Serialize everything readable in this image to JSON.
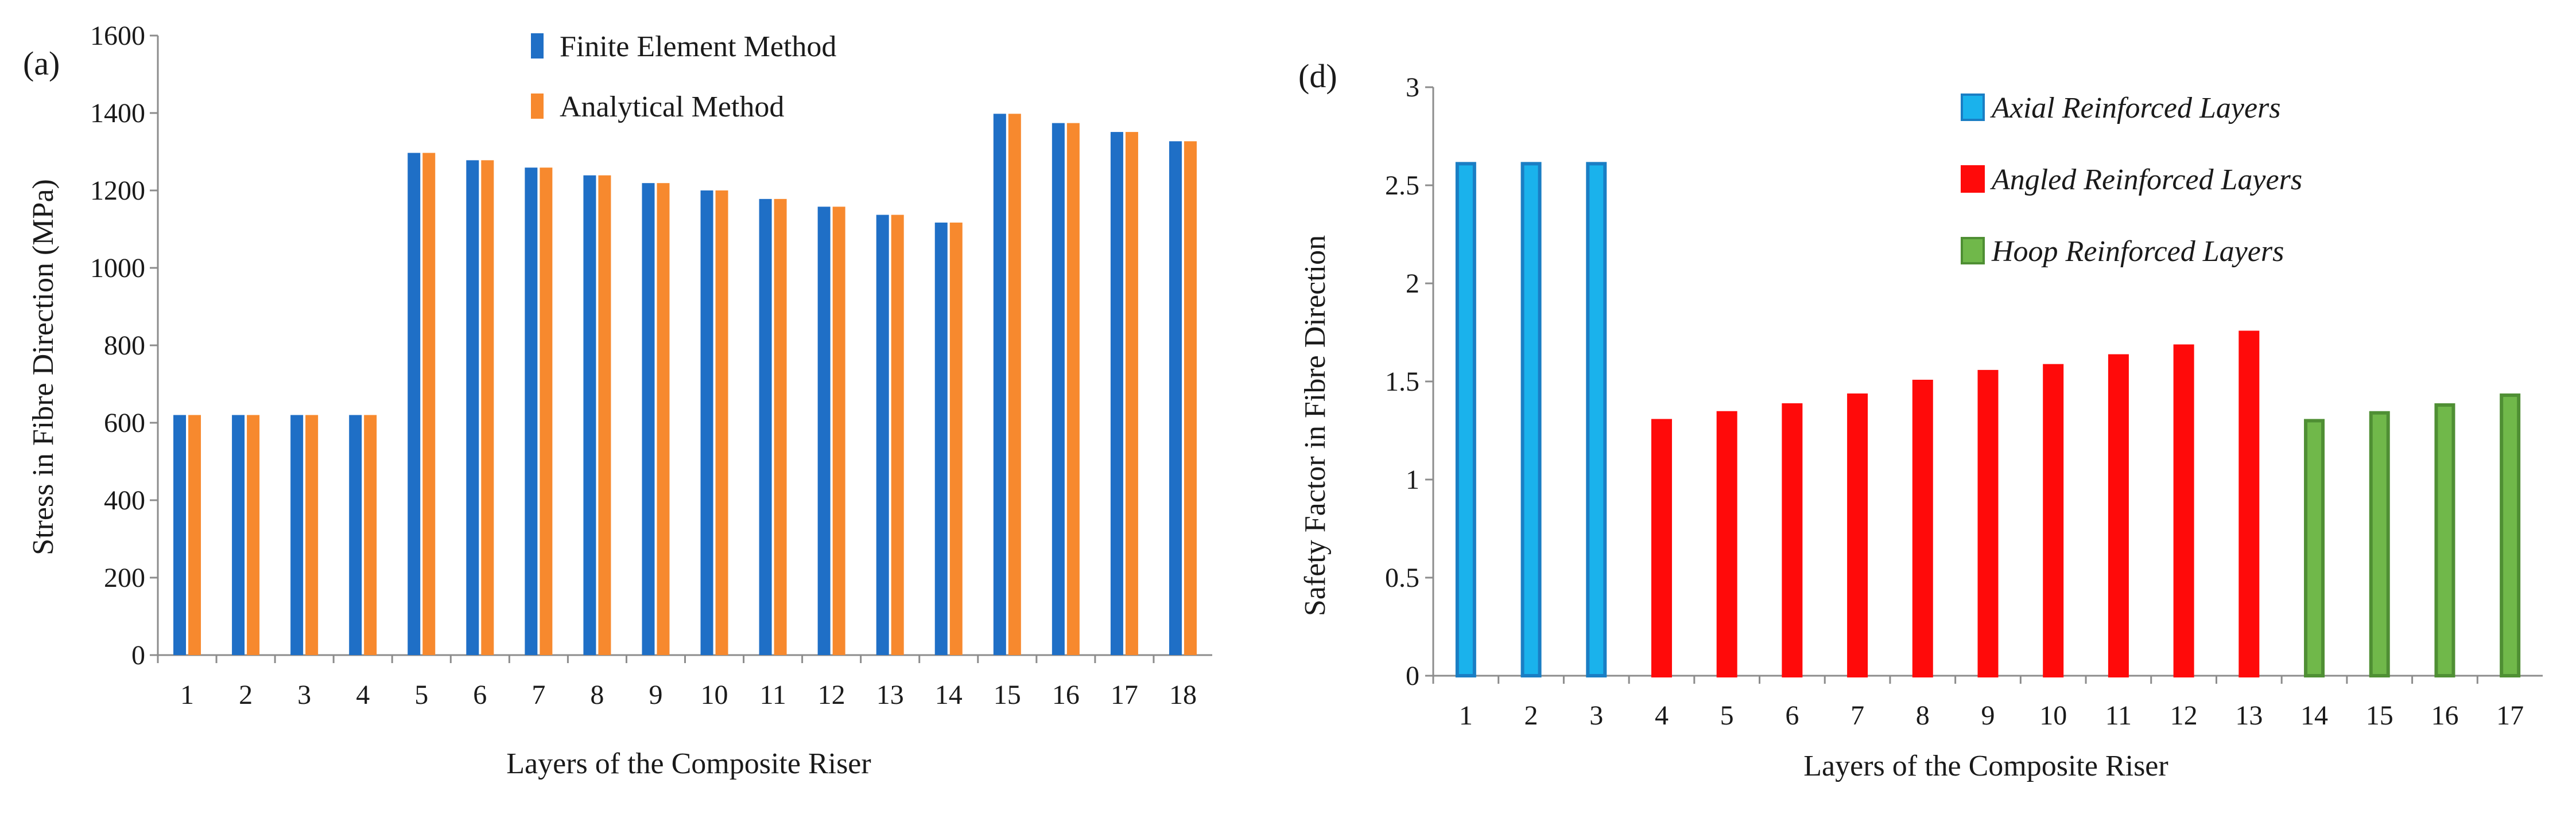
{
  "chart_data": [
    {
      "type": "bar",
      "panel_label": "(a)",
      "title": "",
      "xlabel": "Layers of the Composite Riser",
      "ylabel": "Stress in Fibre Direction (MPa)",
      "ylim": [
        0,
        1600
      ],
      "yticks": [
        0,
        200,
        400,
        600,
        800,
        1000,
        1200,
        1400,
        1600
      ],
      "categories": [
        "1",
        "2",
        "3",
        "4",
        "5",
        "6",
        "7",
        "8",
        "9",
        "10",
        "11",
        "12",
        "13",
        "14",
        "15",
        "16",
        "17",
        "18"
      ],
      "series": [
        {
          "name": "Finite Element Method",
          "color": "#1f6fc6",
          "values": [
            620,
            620,
            620,
            620,
            1297,
            1278,
            1259,
            1239,
            1219,
            1200,
            1178,
            1158,
            1137,
            1117,
            1398,
            1374,
            1351,
            1327
          ]
        },
        {
          "name": "Analytical Method",
          "color": "#f7892e",
          "values": [
            620,
            620,
            620,
            620,
            1297,
            1278,
            1259,
            1239,
            1219,
            1200,
            1178,
            1158,
            1137,
            1117,
            1398,
            1374,
            1351,
            1327
          ]
        }
      ],
      "legend_position": "top-center"
    },
    {
      "type": "bar",
      "panel_label": "(d)",
      "title": "",
      "xlabel": "Layers of the Composite Riser",
      "ylabel": "Safety Factor in Fibre Direction",
      "ylim": [
        0,
        3
      ],
      "yticks": [
        "0",
        "0.5",
        "1",
        "1.5",
        "2",
        "2.5",
        "3"
      ],
      "categories": [
        "1",
        "2",
        "3",
        "4",
        "5",
        "6",
        "7",
        "8",
        "9",
        "10",
        "11",
        "12",
        "13",
        "14",
        "15",
        "16",
        "17"
      ],
      "series": [
        {
          "name": "Axial Reinforced Layers",
          "color": "#1ab2ec",
          "edge": "#1a7ec4",
          "values": [
            2.61,
            2.61,
            2.61,
            null,
            null,
            null,
            null,
            null,
            null,
            null,
            null,
            null,
            null,
            null,
            null,
            null,
            null
          ]
        },
        {
          "name": "Angled Reinforced Layers",
          "color": "#ff0a0a",
          "edge": "#ff0a0a",
          "values": [
            null,
            null,
            null,
            1.3,
            1.34,
            1.38,
            1.43,
            1.5,
            1.55,
            1.58,
            1.63,
            1.68,
            1.75,
            null,
            null,
            null,
            null
          ]
        },
        {
          "name": "Hoop Reinforced Layers",
          "color": "#70b84a",
          "edge": "#4f8f34",
          "values": [
            null,
            null,
            null,
            null,
            null,
            null,
            null,
            null,
            null,
            null,
            null,
            null,
            null,
            1.3,
            1.34,
            1.38,
            1.43
          ]
        }
      ],
      "legend_position": "top-right"
    }
  ]
}
